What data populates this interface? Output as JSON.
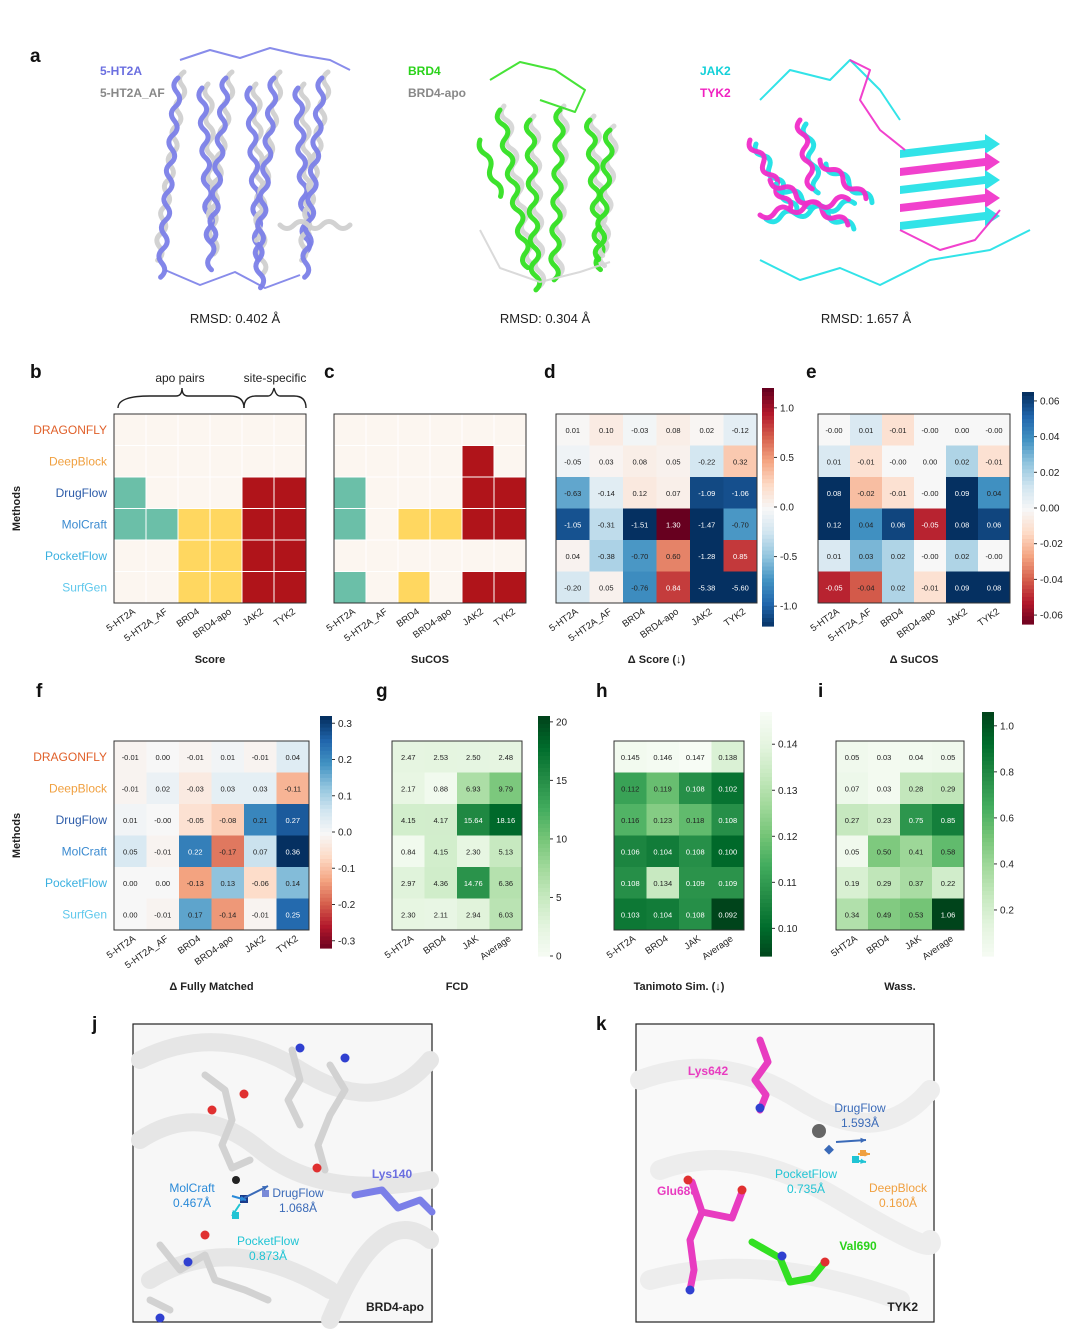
{
  "panel_labels": [
    "a",
    "b",
    "c",
    "d",
    "e",
    "f",
    "g",
    "h",
    "i",
    "j",
    "k"
  ],
  "panel_a": [
    {
      "labels": [
        {
          "text": "5-HT2A",
          "color": "#6b6fe0"
        },
        {
          "text": "5-HT2A_AF",
          "color": "#888888"
        }
      ],
      "rmsd": "RMSD: 0.402 Å",
      "primary": "#7b7fe8",
      "secondary": "#d0d0d0"
    },
    {
      "labels": [
        {
          "text": "BRD4",
          "color": "#2ad21a"
        },
        {
          "text": "BRD4-apo",
          "color": "#888888"
        }
      ],
      "rmsd": "RMSD: 0.304 Å",
      "primary": "#33e022",
      "secondary": "#d6d6d6"
    },
    {
      "labels": [
        {
          "text": "JAK2",
          "color": "#12d0d8"
        },
        {
          "text": "TYK2",
          "color": "#f020c0"
        }
      ],
      "rmsd": "RMSD: 1.657 Å",
      "primary": "#1ce0e6",
      "secondary": "#f02cc8"
    }
  ],
  "methods": [
    "DRAGONFLY",
    "DeepBlock",
    "DrugFlow",
    "MolCraft",
    "PocketFlow",
    "SurfGen"
  ],
  "method_colors": [
    "#e0602a",
    "#f0a040",
    "#2a5aa8",
    "#3a8ad0",
    "#3ab0e0",
    "#60c8ec"
  ],
  "methods_axis_label": "Methods",
  "targets6": [
    "5-HT2A",
    "5-HT2A_AF",
    "BRD4",
    "BRD4-apo",
    "JAK2",
    "TYK2"
  ],
  "b_brace_labels": [
    "apo pairs",
    "site-specific"
  ],
  "chart_data": [
    {
      "id": "b",
      "type": "heatmap",
      "xlabel": "Score",
      "x": [
        "5-HT2A",
        "5-HT2A_AF",
        "BRD4",
        "BRD4-apo",
        "JAK2",
        "TYK2"
      ],
      "y": [
        "DRAGONFLY",
        "DeepBlock",
        "DrugFlow",
        "MolCraft",
        "PocketFlow",
        "SurfGen"
      ],
      "values": [
        [
          0,
          0,
          0,
          0,
          0,
          0
        ],
        [
          0,
          0,
          0,
          0,
          0,
          0
        ],
        [
          1,
          0,
          0,
          0,
          2,
          2
        ],
        [
          1,
          1,
          3,
          3,
          2,
          2
        ],
        [
          0,
          0,
          3,
          3,
          2,
          2
        ],
        [
          0,
          0,
          3,
          3,
          2,
          2
        ]
      ],
      "categorical_colors": [
        "#fcf6f0",
        "#6bbfa8",
        "#b0141a",
        "#ffd760"
      ]
    },
    {
      "id": "c",
      "type": "heatmap",
      "xlabel": "SuCOS",
      "x": [
        "5-HT2A",
        "5-HT2A_AF",
        "BRD4",
        "BRD4-apo",
        "JAK2",
        "TYK2"
      ],
      "y": [
        "DRAGONFLY",
        "DeepBlock",
        "DrugFlow",
        "MolCraft",
        "PocketFlow",
        "SurfGen"
      ],
      "values": [
        [
          0,
          0,
          0,
          0,
          0,
          0
        ],
        [
          0,
          0,
          0,
          0,
          2,
          0
        ],
        [
          1,
          0,
          0,
          0,
          2,
          2
        ],
        [
          1,
          0,
          3,
          3,
          2,
          2
        ],
        [
          0,
          0,
          0,
          0,
          0,
          0
        ],
        [
          1,
          0,
          3,
          0,
          2,
          2
        ]
      ],
      "categorical_colors": [
        "#fcf6f0",
        "#6bbfa8",
        "#b0141a",
        "#ffd760"
      ]
    },
    {
      "id": "d",
      "type": "heatmap",
      "xlabel": "Δ Score (↓)",
      "x": [
        "5-HT2A",
        "5-HT2A_AF",
        "BRD4",
        "BRD4-apo",
        "JAK2",
        "TYK2"
      ],
      "y": [
        "DRAGONFLY",
        "DeepBlock",
        "DrugFlow",
        "MolCraft",
        "PocketFlow",
        "SurfGen"
      ],
      "values": [
        [
          0.01,
          0.1,
          -0.03,
          0.08,
          0.02,
          -0.12
        ],
        [
          -0.05,
          0.03,
          0.08,
          0.05,
          -0.22,
          0.32
        ],
        [
          -0.63,
          -0.14,
          0.12,
          0.07,
          -1.09,
          -1.06
        ],
        [
          -1.05,
          -0.31,
          -1.51,
          1.3,
          -1.47,
          -0.7
        ],
        [
          0.04,
          -0.38,
          -0.7,
          0.6,
          -1.28,
          0.85
        ],
        [
          -0.2,
          0.05,
          -0.76,
          0.84,
          -5.38,
          -5.6
        ]
      ],
      "vmin": -1.2,
      "vmax": 1.2,
      "colormap": "RdBu_r",
      "ticks": [
        1.0,
        0.5,
        0.0,
        -0.5,
        -1.0
      ],
      "tick_labels": [
        "1.0",
        "0.5",
        "0.0",
        "-0.5",
        "-1.0"
      ]
    },
    {
      "id": "e",
      "type": "heatmap",
      "xlabel": "Δ SuCOS",
      "x": [
        "5-HT2A",
        "5-HT2A_AF",
        "BRD4",
        "BRD4-apo",
        "JAK2",
        "TYK2"
      ],
      "y": [
        "DRAGONFLY",
        "DeepBlock",
        "DrugFlow",
        "MolCraft",
        "PocketFlow",
        "SurfGen"
      ],
      "values": [
        [
          -0.0,
          0.01,
          -0.01,
          -0.0,
          0.0,
          -0.0
        ],
        [
          0.01,
          -0.01,
          -0.0,
          0.0,
          0.02,
          -0.01
        ],
        [
          0.08,
          -0.02,
          -0.01,
          -0.0,
          0.09,
          0.04
        ],
        [
          0.12,
          0.04,
          0.06,
          -0.05,
          0.08,
          0.06
        ],
        [
          0.01,
          0.03,
          0.02,
          -0.0,
          0.02,
          -0.0
        ],
        [
          -0.05,
          -0.04,
          0.02,
          -0.01,
          0.09,
          0.08
        ]
      ],
      "value_labels": [
        [
          "-0.00",
          "0.01",
          "-0.01",
          "-0.00",
          "0.00",
          "-0.00"
        ],
        [
          "0.01",
          "-0.01",
          "-0.00",
          "0.00",
          "0.02",
          "-0.01"
        ],
        [
          "0.08",
          "-0.02",
          "-0.01",
          "-0.00",
          "0.09",
          "0.04"
        ],
        [
          "0.12",
          "0.04",
          "0.06",
          "-0.05",
          "0.08",
          "0.06"
        ],
        [
          "0.01",
          "0.03",
          "0.02",
          "-0.00",
          "0.02",
          "-0.00"
        ],
        [
          "-0.05",
          "-0.04",
          "0.02",
          "-0.01",
          "0.09",
          "0.08"
        ]
      ],
      "vmin": -0.065,
      "vmax": 0.065,
      "colormap": "RdBu",
      "ticks": [
        0.06,
        0.04,
        0.02,
        0.0,
        -0.02,
        -0.04,
        -0.06
      ],
      "tick_labels": [
        "0.06",
        "0.04",
        "0.02",
        "0.00",
        "-0.02",
        "-0.04",
        "-0.06"
      ]
    },
    {
      "id": "f",
      "type": "heatmap",
      "xlabel": "Δ Fully Matched",
      "x": [
        "5-HT2A",
        "5-HT2A_AF",
        "BRD4",
        "BRD4-apo",
        "JAK2",
        "TYK2"
      ],
      "y": [
        "DRAGONFLY",
        "DeepBlock",
        "DrugFlow",
        "MolCraft",
        "PocketFlow",
        "SurfGen"
      ],
      "values": [
        [
          -0.01,
          0.0,
          -0.01,
          0.01,
          -0.01,
          0.04
        ],
        [
          -0.01,
          0.02,
          -0.03,
          0.03,
          0.03,
          -0.11
        ],
        [
          0.01,
          -0.0,
          -0.05,
          -0.08,
          0.21,
          0.27
        ],
        [
          0.05,
          -0.01,
          0.22,
          -0.17,
          0.07,
          0.36
        ],
        [
          0.0,
          0.0,
          -0.13,
          0.13,
          -0.06,
          0.14
        ],
        [
          0.0,
          -0.01,
          0.17,
          -0.14,
          -0.01,
          0.25
        ]
      ],
      "value_labels": [
        [
          "-0.01",
          "0.00",
          "-0.01",
          "0.01",
          "-0.01",
          "0.04"
        ],
        [
          "-0.01",
          "0.02",
          "-0.03",
          "0.03",
          "0.03",
          "-0.11"
        ],
        [
          "0.01",
          "-0.00",
          "-0.05",
          "-0.08",
          "0.21",
          "0.27"
        ],
        [
          "0.05",
          "-0.01",
          "0.22",
          "-0.17",
          "0.07",
          "0.36"
        ],
        [
          "0.00",
          "0.00",
          "-0.13",
          "0.13",
          "-0.06",
          "0.14"
        ],
        [
          "0.00",
          "-0.01",
          "0.17",
          "-0.14",
          "-0.01",
          "0.25"
        ]
      ],
      "vmin": -0.32,
      "vmax": 0.32,
      "colormap": "RdBu",
      "ticks": [
        0.3,
        0.2,
        0.1,
        0.0,
        -0.1,
        -0.2,
        -0.3
      ],
      "tick_labels": [
        "0.3",
        "0.2",
        "0.1",
        "0.0",
        "-0.1",
        "-0.2",
        "-0.3"
      ]
    },
    {
      "id": "g",
      "type": "heatmap",
      "xlabel": "FCD",
      "x": [
        "5-HT2A",
        "BRD4",
        "JAK",
        "Average"
      ],
      "y": [
        "DRAGONFLY",
        "DeepBlock",
        "DrugFlow",
        "MolCraft",
        "PocketFlow",
        "SurfGen"
      ],
      "values": [
        [
          2.47,
          2.53,
          2.5,
          2.48
        ],
        [
          2.17,
          0.88,
          6.93,
          9.79
        ],
        [
          4.15,
          4.17,
          15.64,
          18.16
        ],
        [
          0.84,
          4.15,
          2.3,
          5.13
        ],
        [
          2.97,
          4.36,
          14.76,
          6.36
        ],
        [
          2.3,
          2.11,
          2.94,
          6.03
        ]
      ],
      "vmin": 0,
      "vmax": 20.5,
      "colormap": "Greens",
      "ticks": [
        20,
        15,
        10,
        5,
        0
      ],
      "tick_labels": [
        "20",
        "15",
        "10",
        "5",
        "0"
      ]
    },
    {
      "id": "h",
      "type": "heatmap",
      "xlabel": "Tanimoto Sim. (↓)",
      "x": [
        "5-HT2A",
        "BRD4",
        "JAK",
        "Average"
      ],
      "y": [
        "DRAGONFLY",
        "DeepBlock",
        "DrugFlow",
        "MolCraft",
        "PocketFlow",
        "SurfGen"
      ],
      "values": [
        [
          0.145,
          0.146,
          0.147,
          0.138
        ],
        [
          0.112,
          0.119,
          0.108,
          0.102
        ],
        [
          0.116,
          0.123,
          0.118,
          0.108
        ],
        [
          0.106,
          0.104,
          0.108,
          0.1
        ],
        [
          0.108,
          0.134,
          0.109,
          0.109
        ],
        [
          0.103,
          0.104,
          0.108,
          0.092
        ]
      ],
      "value_labels": [
        [
          "0.145",
          "0.146",
          "0.147",
          "0.138"
        ],
        [
          "0.112",
          "0.119",
          "0.108",
          "0.102"
        ],
        [
          "0.116",
          "0.123",
          "0.118",
          "0.108"
        ],
        [
          "0.106",
          "0.104",
          "0.108",
          "0.100"
        ],
        [
          "0.108",
          "0.134",
          "0.109",
          "0.109"
        ],
        [
          "0.103",
          "0.104",
          "0.108",
          "0.092"
        ]
      ],
      "vmin": 0.094,
      "vmax": 0.147,
      "colormap": "Greens_r",
      "ticks": [
        0.14,
        0.13,
        0.12,
        0.11,
        0.1
      ],
      "tick_labels": [
        "0.14",
        "0.13",
        "0.12",
        "0.11",
        "0.10"
      ]
    },
    {
      "id": "i",
      "type": "heatmap",
      "xlabel": "Wass.",
      "x": [
        "5HT2A",
        "BRD4",
        "JAK",
        "Average"
      ],
      "y": [
        "DRAGONFLY",
        "DeepBlock",
        "DrugFlow",
        "MolCraft",
        "PocketFlow",
        "SurfGen"
      ],
      "values": [
        [
          0.05,
          0.03,
          0.04,
          0.05
        ],
        [
          0.07,
          0.03,
          0.28,
          0.29
        ],
        [
          0.27,
          0.23,
          0.75,
          0.85
        ],
        [
          0.05,
          0.5,
          0.41,
          0.58
        ],
        [
          0.19,
          0.29,
          0.37,
          0.22
        ],
        [
          0.34,
          0.49,
          0.53,
          1.06
        ]
      ],
      "vmin": 0,
      "vmax": 1.06,
      "colormap": "Greens",
      "ticks": [
        1.0,
        0.8,
        0.6,
        0.4,
        0.2
      ],
      "tick_labels": [
        "1.0",
        "0.8",
        "0.6",
        "0.4",
        "0.2"
      ]
    }
  ],
  "panel_j": {
    "target": "BRD4-apo",
    "annotations": [
      {
        "text": "MolCraft",
        "value": "0.467Å",
        "color": "#2a8ad8"
      },
      {
        "text": "DrugFlow",
        "value": "1.068Å",
        "color": "#3a6ab8"
      },
      {
        "text": "PocketFlow",
        "value": "0.873Å",
        "color": "#20c4d4"
      },
      {
        "text": "Lys140",
        "value": "",
        "color": "#6b6fe0"
      }
    ]
  },
  "panel_k": {
    "target": "TYK2",
    "annotations": [
      {
        "text": "Lys642",
        "value": "",
        "color": "#e83cc0"
      },
      {
        "text": "DrugFlow",
        "value": "1.593Å",
        "color": "#3a6ab8"
      },
      {
        "text": "PocketFlow",
        "value": "0.735Å",
        "color": "#20c4d4"
      },
      {
        "text": "DeepBlock",
        "value": "0.160Å",
        "color": "#f0a040"
      },
      {
        "text": "Glu688",
        "value": "",
        "color": "#e83cc0"
      },
      {
        "text": "Val690",
        "value": "",
        "color": "#2ad21a"
      }
    ]
  }
}
